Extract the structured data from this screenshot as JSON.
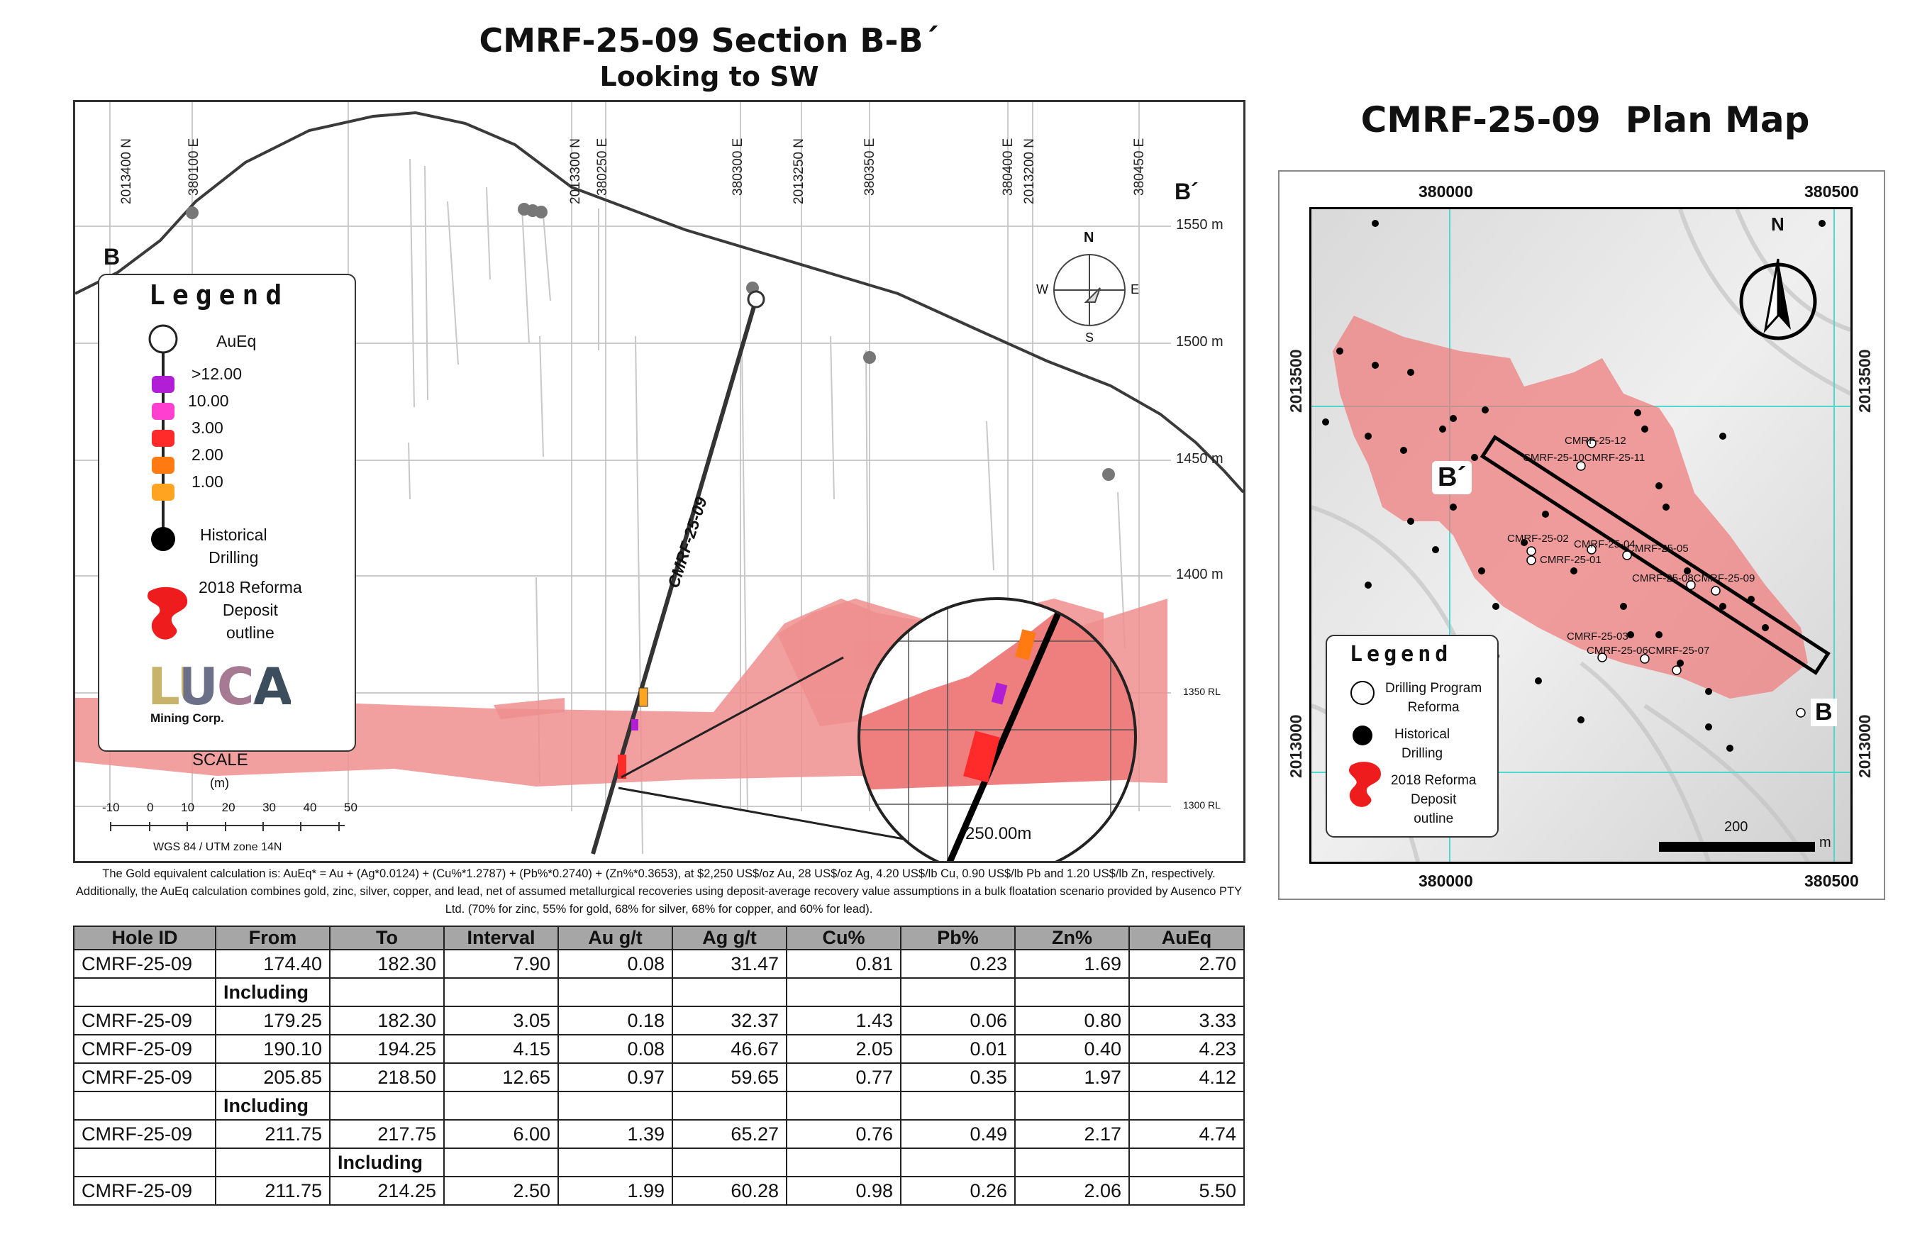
{
  "section": {
    "title": "CMRF-25-09 Section B-B´",
    "subtitle": "Looking to SW",
    "northings": [
      "2013400 N",
      "2013300 N",
      "2013250 N",
      "2013200 N"
    ],
    "eastings": [
      "380100 E",
      "380250 E",
      "380300 E",
      "380350 E",
      "380400 E",
      "380450 E"
    ],
    "elevations": [
      "1550 m",
      "1500 m",
      "1450 m",
      "1400 m"
    ],
    "rl": [
      "1350 RL",
      "1300 RL"
    ],
    "label_b": "B",
    "label_bprime": "B´",
    "hole_label": "CMRF-25-09",
    "inset_distance": "250.00m",
    "compass": {
      "n": "N",
      "s": "S",
      "e": "E",
      "w": "W"
    },
    "scale": {
      "label": "SCALE",
      "unit": "(m)",
      "ticks": [
        "-10",
        "0",
        "10",
        "20",
        "30",
        "40",
        "50"
      ],
      "datum": "WGS 84 / UTM zone 14N"
    },
    "legend": {
      "title": "Legend",
      "aueq_label": "AuEq",
      "grades": [
        {
          "label": ">12.00",
          "color": "#b21ed6"
        },
        {
          "label": "10.00",
          "color": "#ff3fd0"
        },
        {
          "label": "3.00",
          "color": "#ff2b2b"
        },
        {
          "label": "2.00",
          "color": "#ff7a10"
        },
        {
          "label": "1.00",
          "color": "#ffa420"
        }
      ],
      "historical": "Historical\nDrilling",
      "deposit": "2018 Reforma\nDeposit\noutline",
      "logo_text": "LUCA",
      "logo_sub": "Mining Corp."
    }
  },
  "plan": {
    "title": "CMRF-25-09  Plan Map",
    "top_eastings": [
      "380000",
      "380500"
    ],
    "bottom_eastings": [
      "380000",
      "380500"
    ],
    "northings": [
      "2013500",
      "2013000"
    ],
    "north": "N",
    "label_b": "B",
    "label_bprime": "B´",
    "scale_value": "200",
    "scale_unit": "m",
    "holes": [
      "CMRF-25-12",
      "CMRF-25-10CMRF-25-11",
      "CMRF-25-02",
      "CMRF-25-04",
      "CMRF-25-05",
      "CMRF-25-01",
      "CMRF-25-08CMRF-25-09",
      "CMRF-25-03",
      "CMRF-25-06CMRF-25-07"
    ],
    "legend": {
      "title": "Legend",
      "drilling_program": "Drilling Program\nReforma",
      "historical": "Historical\nDrilling",
      "deposit": "2018 Reforma\nDeposit\noutline"
    }
  },
  "footnote": "The Gold equivalent calculation is: AuEq* = Au + (Ag*0.0124) + (Cu%*1.2787) + (Pb%*0.2740) + (Zn%*0.3653), at $2,250 US$/oz Au, 28 US$/oz Ag, 4.20 US$/lb Cu, 0.90 US$/lb Pb and 1.20 US$/lb Zn, respectively. Additionally, the AuEq calculation combines gold, zinc, silver, copper, and lead, net of assumed metallurgical recoveries using deposit-average recovery value assumptions in a bulk floatation scenario provided by Ausenco PTY Ltd. (70% for zinc, 55% for gold, 68% for silver, 68% for copper, and 60% for lead).",
  "table": {
    "headers": [
      "Hole ID",
      "From",
      "To",
      "Interval",
      "Au g/t",
      "Ag g/t",
      "Cu%",
      "Pb%",
      "Zn%",
      "AuEq"
    ],
    "rows": [
      {
        "type": "data",
        "cells": [
          "CMRF-25-09",
          "174.40",
          "182.30",
          "7.90",
          "0.08",
          "31.47",
          "0.81",
          "0.23",
          "1.69",
          "2.70"
        ]
      },
      {
        "type": "including",
        "col": 1,
        "text": "Including"
      },
      {
        "type": "data",
        "cells": [
          "CMRF-25-09",
          "179.25",
          "182.30",
          "3.05",
          "0.18",
          "32.37",
          "1.43",
          "0.06",
          "0.80",
          "3.33"
        ]
      },
      {
        "type": "data",
        "cells": [
          "CMRF-25-09",
          "190.10",
          "194.25",
          "4.15",
          "0.08",
          "46.67",
          "2.05",
          "0.01",
          "0.40",
          "4.23"
        ]
      },
      {
        "type": "data",
        "cells": [
          "CMRF-25-09",
          "205.85",
          "218.50",
          "12.65",
          "0.97",
          "59.65",
          "0.77",
          "0.35",
          "1.97",
          "4.12"
        ]
      },
      {
        "type": "including",
        "col": 1,
        "text": "Including"
      },
      {
        "type": "data",
        "cells": [
          "CMRF-25-09",
          "211.75",
          "217.75",
          "6.00",
          "1.39",
          "65.27",
          "0.76",
          "0.49",
          "2.17",
          "4.74"
        ]
      },
      {
        "type": "including",
        "col": 2,
        "text": "Including"
      },
      {
        "type": "data",
        "cells": [
          "CMRF-25-09",
          "211.75",
          "214.25",
          "2.50",
          "1.99",
          "60.28",
          "0.98",
          "0.26",
          "2.06",
          "5.50"
        ]
      }
    ]
  }
}
